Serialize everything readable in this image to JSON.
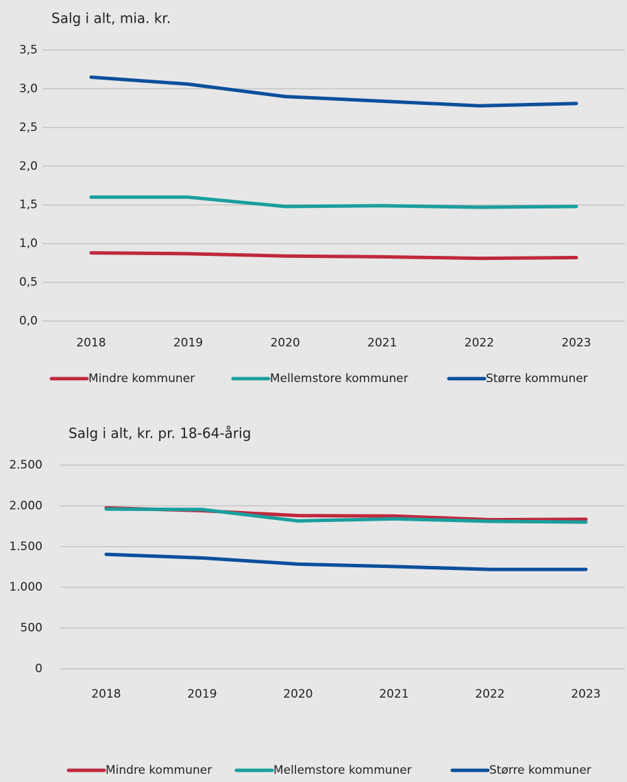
{
  "chart_data": [
    {
      "type": "line",
      "title": "Salg i alt, mia. kr.",
      "categories": [
        "2018",
        "2019",
        "2020",
        "2021",
        "2022",
        "2023"
      ],
      "series": [
        {
          "name": "Mindre kommuner",
          "color": "#c0283c",
          "values": [
            0.88,
            0.87,
            0.84,
            0.83,
            0.81,
            0.82
          ]
        },
        {
          "name": "Mellemstore kommuner",
          "color": "#1a9e9e",
          "values": [
            1.6,
            1.6,
            1.48,
            1.49,
            1.47,
            1.48
          ]
        },
        {
          "name": "Større kommuner",
          "color": "#0b4f9c",
          "values": [
            3.15,
            3.06,
            2.9,
            2.84,
            2.78,
            2.81
          ]
        }
      ],
      "ylim": [
        0,
        3.5
      ],
      "yticks": [
        {
          "value": 0,
          "label": "0,0"
        },
        {
          "value": 0.5,
          "label": "0,5"
        },
        {
          "value": 1,
          "label": "1,0"
        },
        {
          "value": 1.5,
          "label": "1,5"
        },
        {
          "value": 2,
          "label": "2,0"
        },
        {
          "value": 2.5,
          "label": "2,5"
        },
        {
          "value": 3,
          "label": "3,0"
        },
        {
          "value": 3.5,
          "label": "3,5"
        }
      ],
      "grid": true,
      "legend": "bottom"
    },
    {
      "type": "line",
      "title": "Salg i alt, kr. pr. 18-64-årig",
      "categories": [
        "2018",
        "2019",
        "2020",
        "2021",
        "2022",
        "2023"
      ],
      "series": [
        {
          "name": "Mindre kommuner",
          "color": "#c0283c",
          "values": [
            1975,
            1940,
            1880,
            1875,
            1830,
            1835
          ]
        },
        {
          "name": "Mellemstore kommuner",
          "color": "#1a9e9e",
          "values": [
            1960,
            1955,
            1815,
            1840,
            1810,
            1800
          ]
        },
        {
          "name": "Større kommuner",
          "color": "#0b4f9c",
          "values": [
            1405,
            1360,
            1285,
            1255,
            1220,
            1220
          ]
        }
      ],
      "ylim": [
        0,
        2500
      ],
      "yticks": [
        0,
        500,
        {
          "value": 1000,
          "label": "1.000"
        },
        {
          "value": 1500,
          "label": "1.500"
        },
        {
          "value": 2000,
          "label": "2.000"
        },
        {
          "value": 2500,
          "label": "2.500"
        }
      ],
      "grid": true,
      "legend": "bottom"
    }
  ]
}
